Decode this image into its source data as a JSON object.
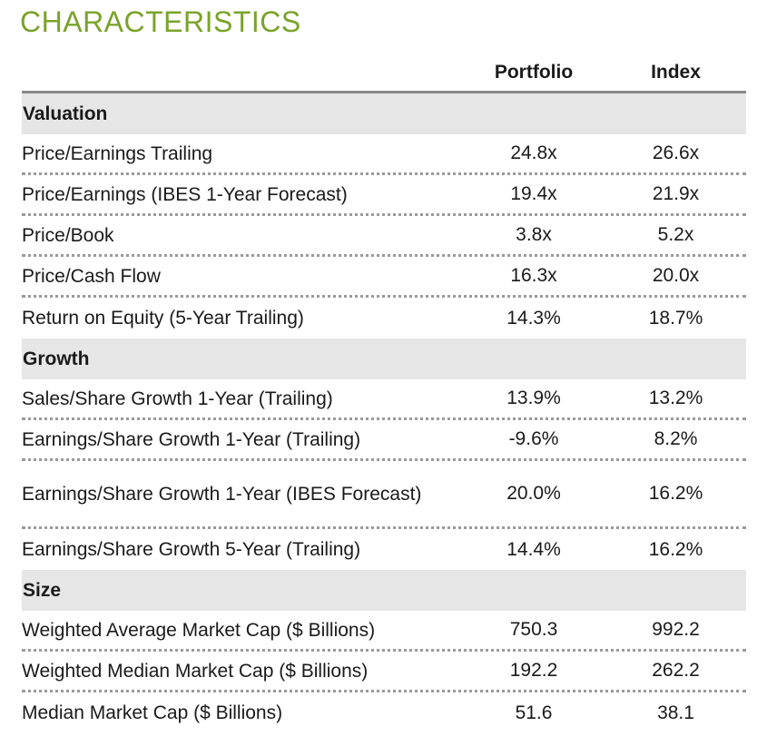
{
  "title": "CHARACTERISTICS",
  "columns": {
    "portfolio": "Portfolio",
    "index": "Index"
  },
  "sections": [
    {
      "name": "Valuation",
      "rows": [
        {
          "label": "Price/Earnings Trailing",
          "portfolio": "24.8x",
          "index": "26.6x"
        },
        {
          "label": "Price/Earnings (IBES 1-Year Forecast)",
          "portfolio": "19.4x",
          "index": "21.9x"
        },
        {
          "label": "Price/Book",
          "portfolio": "3.8x",
          "index": "5.2x"
        },
        {
          "label": "Price/Cash Flow",
          "portfolio": "16.3x",
          "index": "20.0x"
        },
        {
          "label": "Return on Equity (5-Year Trailing)",
          "portfolio": "14.3%",
          "index": "18.7%"
        }
      ]
    },
    {
      "name": "Growth",
      "rows": [
        {
          "label": "Sales/Share Growth 1-Year (Trailing)",
          "portfolio": "13.9%",
          "index": "13.2%"
        },
        {
          "label": "Earnings/Share Growth 1-Year (Trailing)",
          "portfolio": "-9.6%",
          "index": "8.2%"
        },
        {
          "label": "Earnings/Share Growth 1-Year (IBES Forecast)",
          "portfolio": "20.0%",
          "index": "16.2%"
        },
        {
          "label": "Earnings/Share Growth 5-Year (Trailing)",
          "portfolio": "14.4%",
          "index": "16.2%"
        }
      ]
    },
    {
      "name": "Size",
      "rows": [
        {
          "label": "Weighted Average Market Cap ($ Billions)",
          "portfolio": "750.3",
          "index": "992.2"
        },
        {
          "label": "Weighted Median Market Cap ($ Billions)",
          "portfolio": "192.2",
          "index": "262.2"
        },
        {
          "label": "Median Market Cap ($ Billions)",
          "portfolio": "51.6",
          "index": "38.1"
        }
      ]
    }
  ]
}
